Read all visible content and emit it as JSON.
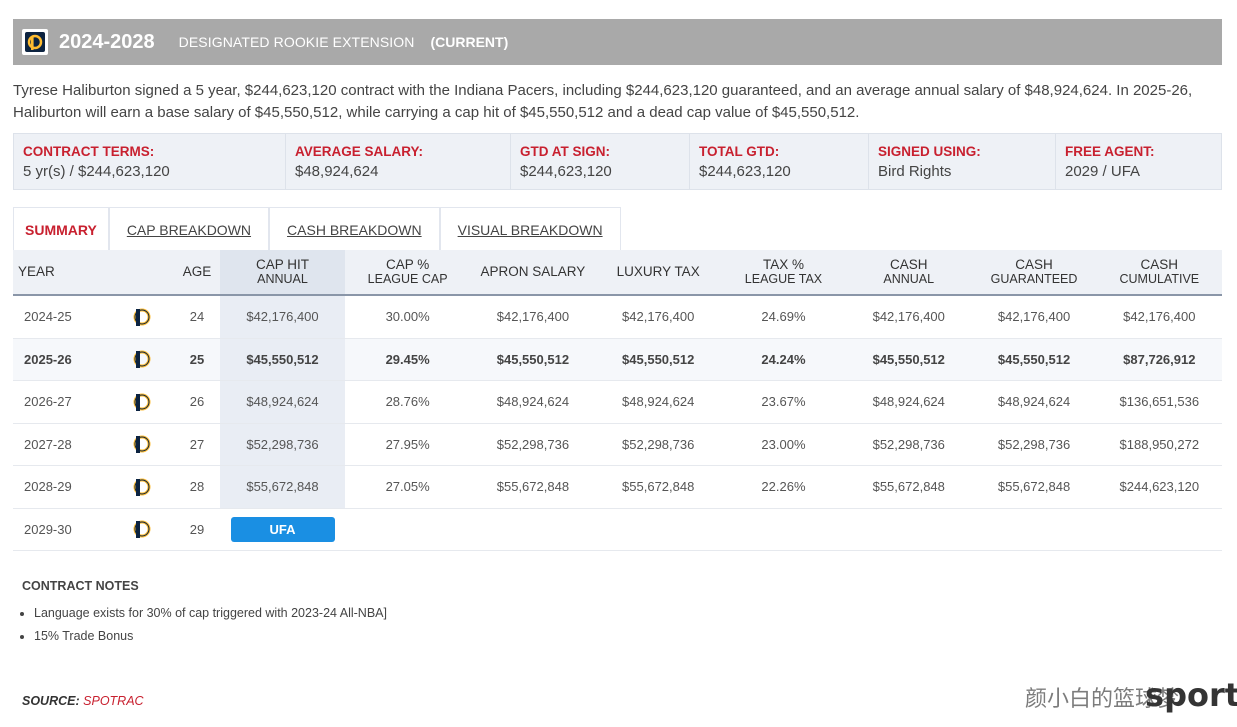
{
  "header": {
    "years": "2024-2028",
    "contract_type": "DESIGNATED ROOKIE EXTENSION",
    "status": "(CURRENT)"
  },
  "description": "Tyrese Haliburton signed a 5 year, $244,623,120 contract with the Indiana Pacers, including $244,623,120 guaranteed, and an average annual salary of $48,924,624. In 2025-26, Haliburton will earn a base salary of $45,550,512, while carrying a cap hit of $45,550,512 and a dead cap value of $45,550,512.",
  "terms": [
    {
      "label": "CONTRACT TERMS:",
      "value": "5 yr(s) / $244,623,120"
    },
    {
      "label": "AVERAGE SALARY:",
      "value": "$48,924,624"
    },
    {
      "label": "GTD AT SIGN:",
      "value": "$244,623,120"
    },
    {
      "label": "TOTAL GTD:",
      "value": "$244,623,120"
    },
    {
      "label": "SIGNED USING:",
      "value": "Bird Rights"
    },
    {
      "label": "FREE AGENT:",
      "value": "2029 / UFA"
    }
  ],
  "tabs": [
    "SUMMARY",
    "CAP BREAKDOWN",
    "CASH BREAKDOWN",
    "VISUAL BREAKDOWN"
  ],
  "columns": {
    "year": "YEAR",
    "age": "AGE",
    "cap_hit": [
      "CAP HIT",
      "ANNUAL"
    ],
    "cap_pct": [
      "CAP %",
      "LEAGUE CAP"
    ],
    "apron": "APRON SALARY",
    "luxury": "LUXURY TAX",
    "tax_pct": [
      "TAX %",
      "LEAGUE TAX"
    ],
    "cash_annual": [
      "CASH",
      "ANNUAL"
    ],
    "cash_gtd": [
      "CASH",
      "GUARANTEED"
    ],
    "cash_cum": [
      "CASH",
      "CUMULATIVE"
    ]
  },
  "rows": [
    {
      "year": "2024-25",
      "age": "24",
      "cap": "$42,176,400",
      "cap_pct": "30.00%",
      "apron": "$42,176,400",
      "luxury": "$42,176,400",
      "tax_pct": "24.69%",
      "cash_annual": "$42,176,400",
      "cash_gtd": "$42,176,400",
      "cash_cum": "$42,176,400"
    },
    {
      "year": "2025-26",
      "age": "25",
      "cap": "$45,550,512",
      "cap_pct": "29.45%",
      "apron": "$45,550,512",
      "luxury": "$45,550,512",
      "tax_pct": "24.24%",
      "cash_annual": "$45,550,512",
      "cash_gtd": "$45,550,512",
      "cash_cum": "$87,726,912"
    },
    {
      "year": "2026-27",
      "age": "26",
      "cap": "$48,924,624",
      "cap_pct": "28.76%",
      "apron": "$48,924,624",
      "luxury": "$48,924,624",
      "tax_pct": "23.67%",
      "cash_annual": "$48,924,624",
      "cash_gtd": "$48,924,624",
      "cash_cum": "$136,651,536"
    },
    {
      "year": "2027-28",
      "age": "27",
      "cap": "$52,298,736",
      "cap_pct": "27.95%",
      "apron": "$52,298,736",
      "luxury": "$52,298,736",
      "tax_pct": "23.00%",
      "cash_annual": "$52,298,736",
      "cash_gtd": "$52,298,736",
      "cash_cum": "$188,950,272"
    },
    {
      "year": "2028-29",
      "age": "28",
      "cap": "$55,672,848",
      "cap_pct": "27.05%",
      "apron": "$55,672,848",
      "luxury": "$55,672,848",
      "tax_pct": "22.26%",
      "cash_annual": "$55,672,848",
      "cash_gtd": "$55,672,848",
      "cash_cum": "$244,623,120"
    }
  ],
  "fa_row": {
    "year": "2029-30",
    "age": "29",
    "badge": "UFA"
  },
  "notes": {
    "title": "CONTRACT NOTES",
    "items": [
      "Language exists for 30% of cap triggered with 2023-24 All-NBA]",
      "15% Trade Bonus"
    ]
  },
  "source": {
    "label": "SOURCE:",
    "name": "SPOTRAC"
  },
  "watermark": {
    "cn": "颜小白的篮球梦",
    "en": "sports"
  },
  "colors": {
    "accent_red": "#c8202f",
    "header_gray": "#a9a9a9",
    "ufa_blue": "#1a8fe3",
    "pacers_navy": "#0c2340",
    "pacers_gold": "#fdbb30"
  }
}
